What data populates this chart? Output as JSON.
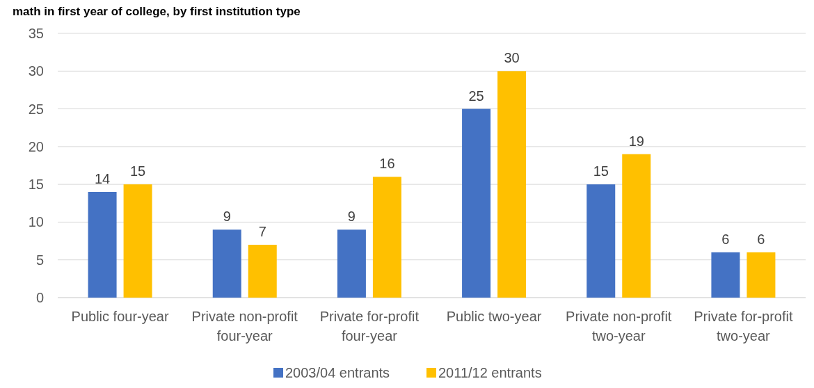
{
  "chart_data": {
    "type": "bar",
    "title": "math in first year of college, by first institution type",
    "categories": [
      "Public four-year",
      "Private non-profit four-year",
      "Private for-profit four-year",
      "Public two-year",
      "Private non-profit two-year",
      "Private for-profit two-year"
    ],
    "series": [
      {
        "name": "2003/04 entrants",
        "color": "#4472c4",
        "values": [
          14,
          9,
          9,
          25,
          15,
          6
        ]
      },
      {
        "name": "2011/12 entrants",
        "color": "#ffc000",
        "values": [
          15,
          7,
          16,
          30,
          19,
          6
        ]
      }
    ],
    "ylim": [
      0,
      35
    ],
    "yticks": [
      0,
      5,
      10,
      15,
      20,
      25,
      30,
      35
    ],
    "grid": "y",
    "legend": "bottom",
    "data_labels": true
  }
}
